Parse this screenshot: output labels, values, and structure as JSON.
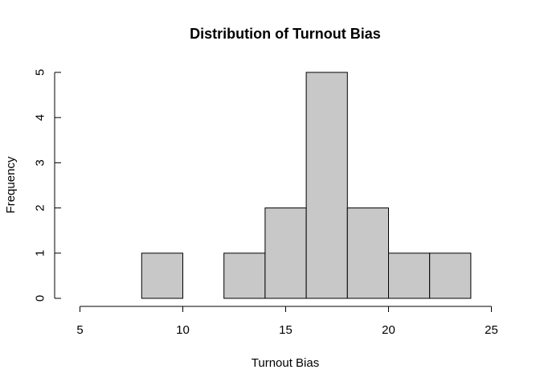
{
  "chart_data": {
    "type": "bar",
    "title": "Distribution of Turnout Bias",
    "xlabel": "Turnout Bias",
    "ylabel": "Frequency",
    "bins": [
      {
        "start": 8,
        "end": 10,
        "count": 1
      },
      {
        "start": 10,
        "end": 12,
        "count": 0
      },
      {
        "start": 12,
        "end": 14,
        "count": 1
      },
      {
        "start": 14,
        "end": 16,
        "count": 2
      },
      {
        "start": 16,
        "end": 18,
        "count": 5
      },
      {
        "start": 18,
        "end": 20,
        "count": 2
      },
      {
        "start": 20,
        "end": 22,
        "count": 1
      },
      {
        "start": 22,
        "end": 24,
        "count": 1
      }
    ],
    "xlim": [
      5,
      25
    ],
    "ylim": [
      0,
      5
    ],
    "xticks": [
      "5",
      "10",
      "15",
      "20",
      "25"
    ],
    "yticks": [
      "0",
      "1",
      "2",
      "3",
      "4",
      "5"
    ],
    "bar_color": "#c8c8c8",
    "grid": false
  }
}
